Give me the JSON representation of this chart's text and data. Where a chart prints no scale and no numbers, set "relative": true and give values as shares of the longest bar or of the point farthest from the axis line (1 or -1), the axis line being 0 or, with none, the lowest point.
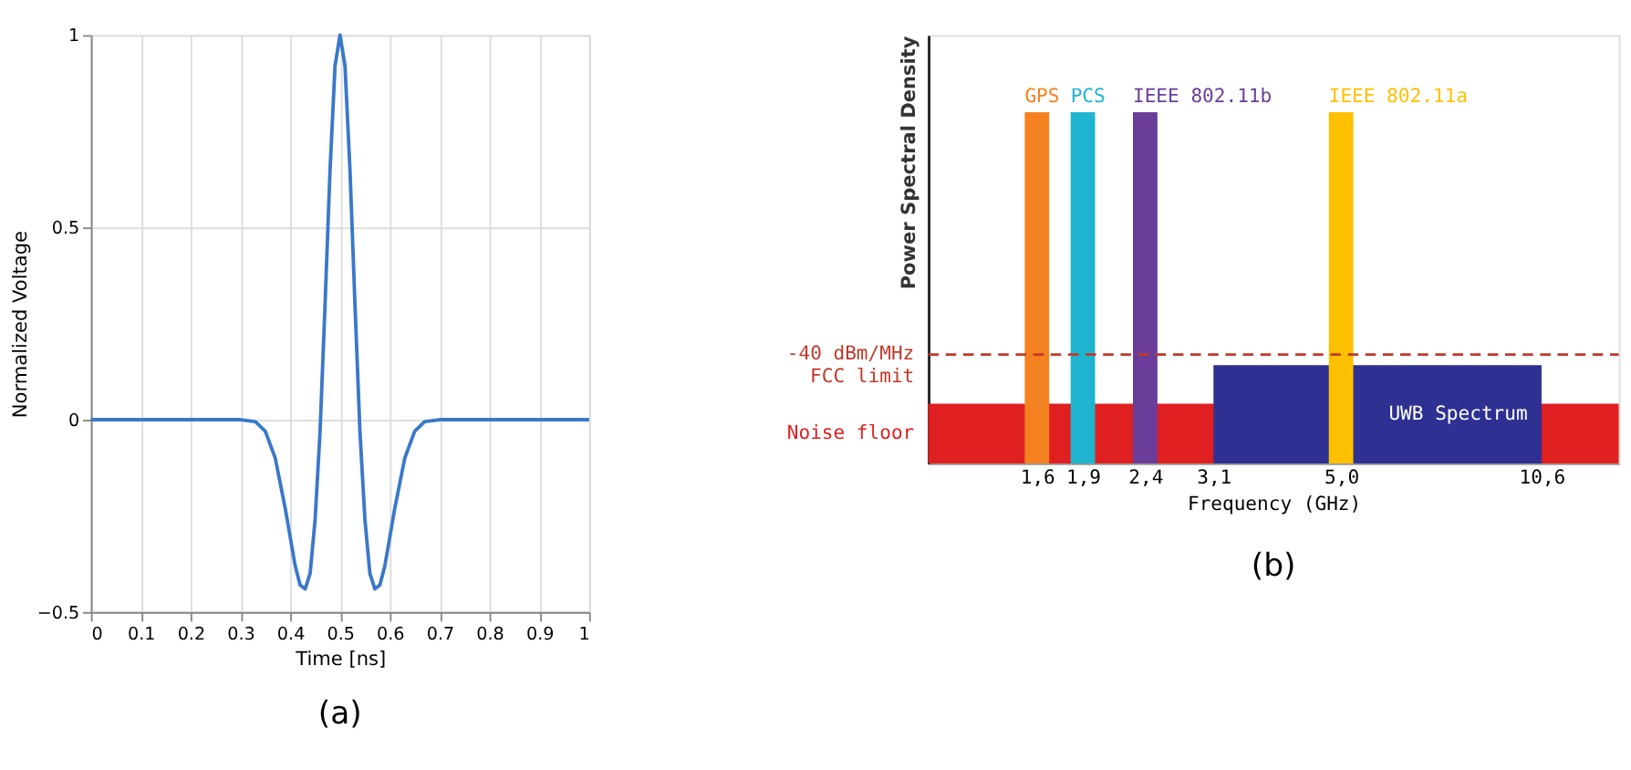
{
  "chart_data": [
    {
      "type": "line",
      "xlabel": "Time [ns]",
      "ylabel": "Normalized Voltage",
      "xlim": [
        0,
        1
      ],
      "ylim": [
        -0.5,
        1
      ],
      "xticks": [
        0,
        0.1,
        0.2,
        0.3,
        0.4,
        0.5,
        0.6,
        0.7,
        0.8,
        0.9,
        1
      ],
      "yticks": [
        -0.5,
        0,
        0.5,
        1
      ],
      "grid": true,
      "legend": false,
      "marker": "none",
      "line_style": "solid",
      "series": [
        {
          "color": "#3a78c9",
          "x": [
            0,
            0.1,
            0.2,
            0.3,
            0.33,
            0.35,
            0.37,
            0.39,
            0.41,
            0.42,
            0.43,
            0.44,
            0.45,
            0.46,
            0.47,
            0.48,
            0.49,
            0.5,
            0.51,
            0.52,
            0.53,
            0.54,
            0.55,
            0.56,
            0.57,
            0.58,
            0.59,
            0.61,
            0.63,
            0.65,
            0.67,
            0.7,
            0.8,
            0.9,
            1
          ],
          "values": [
            0,
            0,
            0,
            0,
            -0.005,
            -0.03,
            -0.1,
            -0.23,
            -0.38,
            -0.43,
            -0.44,
            -0.4,
            -0.26,
            -0.03,
            0.3,
            0.65,
            0.92,
            1.0,
            0.92,
            0.65,
            0.3,
            -0.03,
            -0.26,
            -0.4,
            -0.44,
            -0.43,
            -0.38,
            -0.23,
            -0.1,
            -0.03,
            -0.005,
            0,
            0,
            0,
            0
          ]
        }
      ],
      "annotations": [
        "(a)"
      ]
    },
    {
      "type": "bar",
      "relative": true,
      "xlabel": "Frequency (GHz)",
      "ylabel": "Power Spectral Density",
      "log": "x",
      "xlim": [
        1.1,
        13.7
      ],
      "tick_labels": "x",
      "grid": false,
      "legend": false,
      "xticks": [
        {
          "value": 1.6,
          "label": "1,6"
        },
        {
          "value": 1.9,
          "label": "1,9"
        },
        {
          "value": 2.4,
          "label": "2,4"
        },
        {
          "value": 3.1,
          "label": "3,1"
        },
        {
          "value": 5.0,
          "label": "5,0"
        },
        {
          "value": 10.6,
          "label": "10,6"
        }
      ],
      "series": [
        {
          "name": "UWB Spectrum",
          "type": "area",
          "color": "#2e3192",
          "x": [
            3.1,
            10.6
          ],
          "values": [
            0.28,
            0.28
          ]
        },
        {
          "name": "GPS",
          "color": "#f58220",
          "x": [
            1.6
          ],
          "values": [
            1
          ]
        },
        {
          "name": "PCS",
          "color": "#1fb5d0",
          "x": [
            1.9
          ],
          "values": [
            1
          ]
        },
        {
          "name": "IEEE 802.11b",
          "color": "#6a3d9a",
          "x": [
            2.4
          ],
          "values": [
            1
          ]
        },
        {
          "name": "IEEE 802.11a",
          "color": "#ffc000",
          "x": [
            5.0
          ],
          "values": [
            1
          ]
        }
      ],
      "bands": [
        {
          "axis": "y",
          "from": 0,
          "to": 0.17,
          "label": "Noise floor",
          "color": "#e02020"
        }
      ],
      "ref_lines": [
        {
          "axis": "y",
          "value": 0.31,
          "label": "-40 dBm/MHz\nFCC limit",
          "color": "#c0392b",
          "line_style": "dashed"
        }
      ],
      "annotations": [
        "(b)"
      ]
    }
  ]
}
